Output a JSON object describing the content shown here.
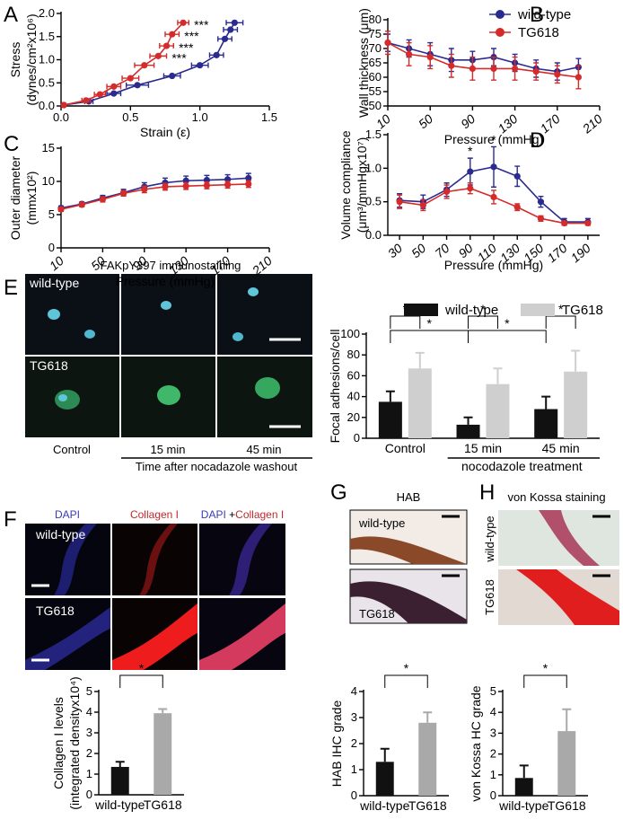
{
  "figure": {
    "E": {
      "title": "FAKpY397 immunostaining",
      "rows": [
        "wild-type",
        "TG618"
      ],
      "columns": [
        "Control",
        "15 min",
        "45 min"
      ],
      "caption": "Time after nocadazole washout"
    },
    "F": {
      "columns": [
        "DAPI",
        "Collagen I"
      ],
      "merge": [
        "DAPI",
        "+",
        "Collagen I"
      ],
      "rows": [
        "wild-type",
        "TG618"
      ]
    },
    "G": {
      "title": "HAB",
      "rows": [
        "wild-type",
        "TG618"
      ]
    },
    "H": {
      "title": "von Kossa staining",
      "rows": [
        "wild-type",
        "TG618"
      ]
    }
  },
  "chart_data": [
    {
      "type": "line",
      "label": "A",
      "xlabel": "Strain (ε)",
      "ylabel": [
        "Stress",
        "(dynes/cm²x10⁶)"
      ],
      "xlim": [
        0,
        1.5
      ],
      "xticks": [
        {
          "value": 0,
          "label": "0.0"
        },
        0.5,
        {
          "value": 1,
          "label": "1.0"
        },
        1.5
      ],
      "ylim": [
        0,
        2
      ],
      "yticks": [
        {
          "value": 0,
          "label": "0.0"
        },
        0.5,
        {
          "value": 1,
          "label": "1.0"
        },
        1.5,
        {
          "value": 2,
          "label": "2.0"
        }
      ],
      "series": [
        {
          "name": "wild-type",
          "color": "#2b2b8f",
          "x": [
            0.02,
            0.2,
            0.38,
            0.55,
            0.8,
            1.0,
            1.12,
            1.18,
            1.22,
            1.25
          ],
          "xerr": [
            0.01,
            0.03,
            0.05,
            0.08,
            0.06,
            0.06,
            0.05,
            0.05,
            0.05,
            0.06
          ],
          "values": [
            0.02,
            0.1,
            0.27,
            0.45,
            0.65,
            0.88,
            1.1,
            1.45,
            1.65,
            1.8
          ]
        },
        {
          "name": "TG618",
          "color": "#d42b2b",
          "x": [
            0.02,
            0.18,
            0.28,
            0.38,
            0.5,
            0.6,
            0.7,
            0.76,
            0.8,
            0.88
          ],
          "xerr": [
            0.01,
            0.03,
            0.04,
            0.05,
            0.06,
            0.07,
            0.06,
            0.05,
            0.05,
            0.04
          ],
          "values": [
            0.02,
            0.12,
            0.25,
            0.42,
            0.6,
            0.88,
            1.08,
            1.3,
            1.55,
            1.8
          ]
        }
      ],
      "annotations": [
        "***",
        "***",
        "***",
        "***"
      ]
    },
    {
      "type": "line",
      "label": "B",
      "xlabel": "Pressure (mmHg)",
      "ylabel": [
        "Wall thickness (μm)"
      ],
      "x": [
        10,
        30,
        50,
        70,
        90,
        110,
        130,
        150,
        170,
        190
      ],
      "xlim": [
        10,
        210
      ],
      "xticks": [
        10,
        50,
        90,
        130,
        170,
        210
      ],
      "ylim": [
        50,
        80
      ],
      "yticks": [
        50,
        55,
        60,
        65,
        70,
        75,
        80
      ],
      "legend": "top-right",
      "series": [
        {
          "name": "wild-type",
          "color": "#2b2b8f",
          "values": [
            72,
            70,
            68,
            66,
            66,
            67,
            65,
            63,
            62,
            63.5
          ],
          "yerr": [
            3,
            3,
            4,
            4,
            3,
            3,
            3,
            3,
            3,
            3
          ]
        },
        {
          "name": "TG618",
          "color": "#d42b2b",
          "values": [
            72,
            68,
            67,
            64,
            63,
            63,
            63,
            62,
            61,
            60
          ],
          "yerr": [
            4,
            4,
            4,
            4,
            4,
            4,
            4,
            3,
            3,
            4
          ]
        }
      ]
    },
    {
      "type": "line",
      "label": "C",
      "xlabel": "Pressure (mmHg)",
      "ylabel": [
        "Outer diameter",
        "(mmx10²)"
      ],
      "x": [
        10,
        30,
        50,
        70,
        90,
        110,
        130,
        150,
        170,
        190
      ],
      "xlim": [
        10,
        210
      ],
      "xticks": [
        10,
        50,
        90,
        130,
        170,
        210
      ],
      "ylim": [
        0,
        15
      ],
      "yticks": [
        0,
        5,
        10,
        15
      ],
      "series": [
        {
          "name": "wild-type",
          "color": "#2b2b8f",
          "values": [
            6,
            6.6,
            7.5,
            8.3,
            9.2,
            9.8,
            10.1,
            10.2,
            10.3,
            10.5
          ],
          "yerr": [
            0.3,
            0.3,
            0.4,
            0.5,
            0.6,
            0.7,
            0.7,
            0.7,
            0.7,
            0.7
          ]
        },
        {
          "name": "TG618",
          "color": "#d42b2b",
          "values": [
            5.8,
            6.5,
            7.3,
            8.2,
            8.8,
            9.2,
            9.3,
            9.4,
            9.5,
            9.6
          ],
          "yerr": [
            0.3,
            0.3,
            0.4,
            0.4,
            0.5,
            0.5,
            0.5,
            0.5,
            0.5,
            0.5
          ]
        }
      ]
    },
    {
      "type": "line",
      "label": "D",
      "xlabel": "Pressure (mmHg)",
      "ylabel": [
        "Volume compliance",
        "(μm³/mmHgx10⁷)"
      ],
      "x": [
        30,
        50,
        70,
        90,
        110,
        130,
        150,
        170,
        190
      ],
      "xlim": [
        20,
        200
      ],
      "xticks": [
        30,
        50,
        70,
        90,
        110,
        130,
        150,
        170,
        190
      ],
      "ylim": [
        0,
        1.5
      ],
      "yticks": [
        {
          "value": 0,
          "label": "0.0"
        },
        0.5,
        {
          "value": 1,
          "label": "1.0"
        },
        1.5
      ],
      "series": [
        {
          "name": "wild-type",
          "color": "#2b2b8f",
          "values": [
            0.52,
            0.5,
            0.68,
            0.95,
            1.02,
            0.88,
            0.5,
            0.2,
            0.2
          ],
          "yerr": [
            0.1,
            0.1,
            0.1,
            0.2,
            0.3,
            0.15,
            0.08,
            0.05,
            0.05
          ]
        },
        {
          "name": "TG618",
          "color": "#d42b2b",
          "values": [
            0.5,
            0.45,
            0.65,
            0.7,
            0.57,
            0.42,
            0.25,
            0.18,
            0.18
          ],
          "yerr": [
            0.1,
            0.08,
            0.1,
            0.08,
            0.1,
            0.05,
            0.04,
            0.03,
            0.03
          ]
        }
      ],
      "annotations": [
        "*",
        "*"
      ]
    },
    {
      "type": "bar",
      "label": "E",
      "ylabel": [
        "Focal adhesions/cell"
      ],
      "categories": [
        "Control",
        "15 min",
        "45 min"
      ],
      "group_label": "nocodazole treatment",
      "ylim": [
        0,
        100
      ],
      "yticks": [
        0,
        20,
        40,
        60,
        80,
        100
      ],
      "legend": "top",
      "series": [
        {
          "name": "wild-type",
          "color": "#111111",
          "values": [
            35,
            13,
            28
          ],
          "yerr": [
            10,
            7,
            12
          ]
        },
        {
          "name": "TG618",
          "color": "#cfcfcf",
          "values": [
            67,
            52,
            64
          ],
          "yerr": [
            15,
            15,
            20
          ]
        }
      ],
      "annotations": [
        "*",
        "*",
        "*",
        "*",
        "*"
      ]
    },
    {
      "type": "bar",
      "label": "F",
      "ylabel": [
        "Collagen I levels",
        "(integrated densityx10⁴)"
      ],
      "categories": [
        "wild-type",
        "TG618"
      ],
      "ylim": [
        0,
        5
      ],
      "yticks": [
        0,
        1,
        2,
        3,
        4,
        5
      ],
      "series": [
        {
          "colors": [
            "#111111",
            "#a9a9a9"
          ],
          "values": [
            1.35,
            3.95
          ],
          "yerr": [
            0.25,
            0.2
          ]
        }
      ],
      "annotations": [
        "*"
      ]
    },
    {
      "type": "bar",
      "label": "G",
      "ylabel": [
        "HAB IHC grade"
      ],
      "categories": [
        "wild-type",
        "TG618"
      ],
      "ylim": [
        0,
        4
      ],
      "yticks": [
        0,
        1,
        2,
        3,
        4
      ],
      "series": [
        {
          "colors": [
            "#111111",
            "#a9a9a9"
          ],
          "values": [
            1.3,
            2.8
          ],
          "yerr": [
            0.5,
            0.4
          ]
        }
      ],
      "annotations": [
        "*"
      ]
    },
    {
      "type": "bar",
      "label": "H",
      "ylabel": [
        "von Kossa HC grade"
      ],
      "categories": [
        "wild-type",
        "TG618"
      ],
      "ylim": [
        0,
        5
      ],
      "yticks": [
        0,
        1,
        2,
        3,
        4,
        5
      ],
      "series": [
        {
          "colors": [
            "#111111",
            "#a9a9a9"
          ],
          "values": [
            0.85,
            3.1
          ],
          "yerr": [
            0.6,
            1.05
          ]
        }
      ],
      "annotations": [
        "*"
      ]
    }
  ]
}
